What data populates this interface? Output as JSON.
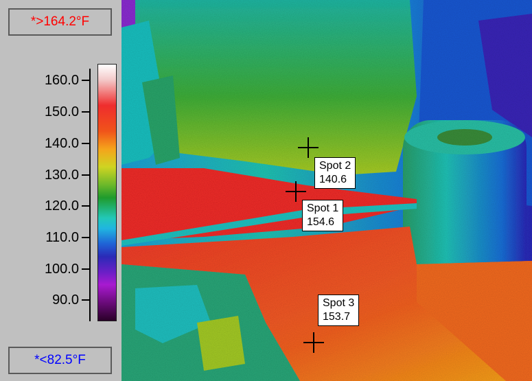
{
  "scale": {
    "max_label": "*>164.2°F",
    "min_label": "*<82.5°F",
    "ticks": [
      "160.0",
      "150.0",
      "140.0",
      "130.0",
      "120.0",
      "110.0",
      "100.0",
      "90.0"
    ],
    "colors": {
      "max_label": "#ff0000",
      "min_label": "#0000ff"
    }
  },
  "spots": [
    {
      "name": "Spot 2",
      "value": "140.6"
    },
    {
      "name": "Spot 1",
      "value": "154.6"
    },
    {
      "name": "Spot 3",
      "value": "153.7"
    }
  ]
}
